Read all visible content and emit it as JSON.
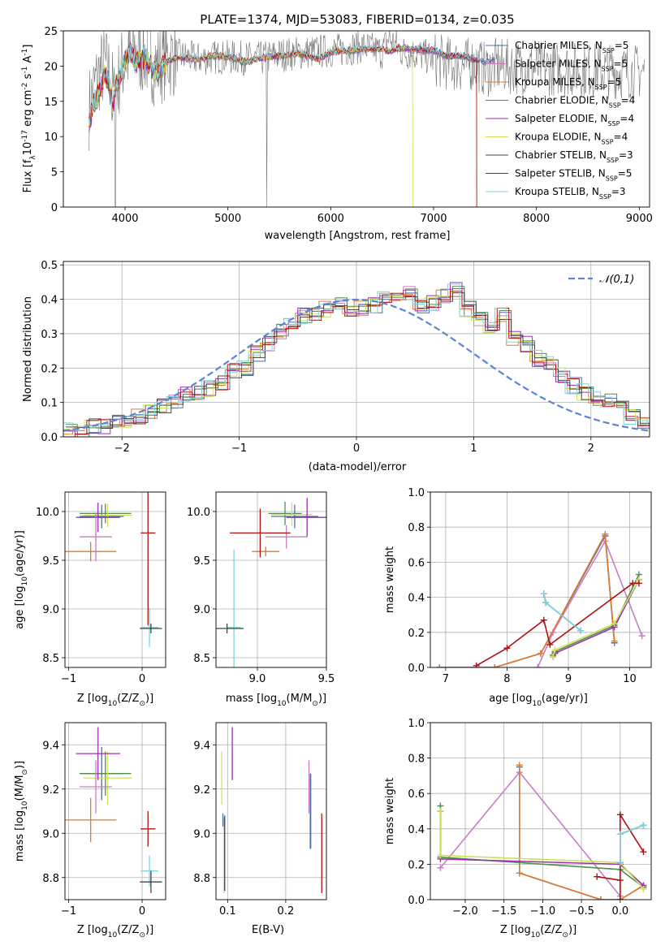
{
  "figure_title": "PLATE=1374, MJD=53083, FIBERID=0134, z=0.035",
  "series_styles": [
    {
      "name": "Chabrier MILES, N$_{SSP}$=5",
      "color": "#4a6fa5"
    },
    {
      "name": "Salpeter MILES, N$_{SSP}$=5",
      "color": "#c87dc3"
    },
    {
      "name": "Kroupa MILES, N$_{SSP}$=5",
      "color": "#e07a2a"
    },
    {
      "name": "Chabrier ELODIE, N$_{SSP}$=4",
      "color": "#4f8f4f"
    },
    {
      "name": "Salpeter ELODIE, N$_{SSP}$=4",
      "color": "#9b2fae"
    },
    {
      "name": "Kroupa ELODIE, N$_{SSP}$=4",
      "color": "#cfe05a"
    },
    {
      "name": "Chabrier STELIB, N$_{SSP}$=3",
      "color": "#444444"
    },
    {
      "name": "Salpeter STELIB, N$_{SSP}$=5",
      "color": "#b01010"
    },
    {
      "name": "Kroupa STELIB, N$_{SSP}$=3",
      "color": "#7fd3dc"
    }
  ],
  "legend_display": [
    {
      "pre": "Chabrier MILES, N",
      "sub": "SSP",
      "post": "=5"
    },
    {
      "pre": "Salpeter MILES, N",
      "sub": "SSP",
      "post": "=5"
    },
    {
      "pre": "Kroupa MILES, N",
      "sub": "SSP",
      "post": "=5"
    },
    {
      "pre": "Chabrier ELODIE, N",
      "sub": "SSP",
      "post": "=4"
    },
    {
      "pre": "Salpeter ELODIE, N",
      "sub": "SSP",
      "post": "=4"
    },
    {
      "pre": "Kroupa ELODIE, N",
      "sub": "SSP",
      "post": "=4"
    },
    {
      "pre": "Chabrier STELIB, N",
      "sub": "SSP",
      "post": "=3"
    },
    {
      "pre": "Salpeter STELIB, N",
      "sub": "SSP",
      "post": "=5"
    },
    {
      "pre": "Kroupa STELIB, N",
      "sub": "SSP",
      "post": "=3"
    }
  ],
  "chart_data": [
    {
      "id": "spectrum",
      "type": "line",
      "xlabel": "wavelength [Angstrom, rest frame]",
      "ylabel": "Flux [f$_\\lambda$10$^{-17}$ erg cm$^{-2}$ s$^{-1}$ A$^{-1}$]",
      "xlim": [
        3400,
        9100
      ],
      "ylim": [
        0,
        25
      ],
      "xticks": [
        4000,
        5000,
        6000,
        7000,
        8000,
        9000
      ],
      "yticks": [
        0,
        5,
        10,
        15,
        20,
        25
      ],
      "data_gray_x": [
        3650,
        3700,
        3750,
        3800,
        3850,
        3900,
        3950,
        4000,
        4100,
        4200,
        4300,
        4400,
        4500,
        4700,
        4900,
        5100,
        5300,
        5500,
        5800,
        6100,
        6300,
        6500,
        6563,
        6700,
        6900,
        7100,
        7300,
        7400,
        7500,
        7600
      ],
      "data_gray_y": [
        14,
        17,
        19,
        20,
        19,
        15,
        19,
        21,
        22,
        21.5,
        20,
        21,
        21.5,
        21,
        21.3,
        21.2,
        21,
        21.6,
        22,
        22.3,
        22.8,
        22,
        24,
        22,
        21.5,
        20.5,
        20,
        20.5,
        19.5,
        19.8
      ],
      "model_x": [
        3650,
        3700,
        3750,
        3800,
        3850,
        3880,
        3900,
        3950,
        4000,
        4050,
        4100,
        4200,
        4300,
        4400,
        4500,
        4700,
        4850,
        5000,
        5175,
        5300,
        5500,
        5700,
        5890,
        6000,
        6300,
        6500,
        6563,
        6700,
        6900,
        7000,
        7100,
        7300,
        7400,
        7500,
        7600
      ],
      "model_y": [
        12,
        15,
        16,
        19,
        17.5,
        13,
        17,
        18.5,
        21,
        22,
        20.5,
        21,
        19,
        20.5,
        21.3,
        21,
        21.5,
        21.3,
        20.6,
        21.1,
        21.4,
        21.8,
        21,
        22,
        22.4,
        22.5,
        22.1,
        22.6,
        22.2,
        22.3,
        21.5,
        21.4,
        20.9,
        20.7,
        21.0
      ],
      "truncations": [
        {
          "series": "Kroupa ELODIE, N$_{SSP}$=4",
          "x_end": 6800
        },
        {
          "series": "Salpeter STELIB, N$_{SSP}$=5",
          "x_end": 7420
        },
        {
          "series": "Kroupa MILES, N$_{SSP}$=5",
          "x_end": 7420
        }
      ],
      "legend_position": "upper right"
    },
    {
      "id": "residuals",
      "type": "line",
      "xlabel": "(data-model)/error",
      "ylabel": "Normed distribution",
      "xlim": [
        -2.5,
        2.5
      ],
      "ylim": [
        0,
        0.51
      ],
      "xticks": [
        -2,
        -1,
        0,
        1,
        2
      ],
      "yticks": [
        0.0,
        0.1,
        0.2,
        0.3,
        0.4,
        0.5
      ],
      "xtick_labels": [
        "−2",
        "−1",
        "0",
        "1",
        "2"
      ],
      "ytick_labels": [
        "0.0",
        "0.1",
        "0.2",
        "0.3",
        "0.4",
        "0.5"
      ],
      "grid": true,
      "bin_width": 0.1,
      "hist_bins_start": -2.5,
      "hist_base": [
        0.02,
        0.02,
        0.03,
        0.03,
        0.04,
        0.05,
        0.06,
        0.07,
        0.09,
        0.1,
        0.12,
        0.13,
        0.14,
        0.16,
        0.19,
        0.2,
        0.24,
        0.27,
        0.31,
        0.33,
        0.35,
        0.35,
        0.37,
        0.38,
        0.36,
        0.37,
        0.38,
        0.4,
        0.41,
        0.42,
        0.38,
        0.39,
        0.41,
        0.43,
        0.37,
        0.34,
        0.32,
        0.36,
        0.29,
        0.27,
        0.23,
        0.22,
        0.18,
        0.15,
        0.13,
        0.11,
        0.1,
        0.08,
        0.06,
        0.05,
        0.04
      ],
      "normal_curve": {
        "label": "$\\mathcal{N}(0,1)$",
        "mean": 0,
        "sd": 1,
        "color": "#5b84d6"
      },
      "legend_position": "upper right"
    },
    {
      "id": "age-vs-Z",
      "type": "scatter",
      "xlabel": "Z [log$_{10}$(Z/Z$_\\odot$)]",
      "ylabel": "age  [log$_{10}$(age/yr)]",
      "xlim": [
        -1.05,
        0.32
      ],
      "ylim": [
        8.4,
        10.2
      ],
      "xticks": [
        -1,
        0
      ],
      "yticks": [
        8.5,
        9.0,
        9.5,
        10.0
      ],
      "xtick_labels": [
        "−1",
        "0"
      ],
      "ytick_labels": [
        "8.5",
        "9.0",
        "9.5",
        "10.0"
      ],
      "grid": true,
      "points": [
        {
          "x": -0.55,
          "y": 9.95,
          "xerr": 0.3,
          "yerr": 0.12,
          "series": 0
        },
        {
          "x": -0.5,
          "y": 9.98,
          "xerr": 0.35,
          "yerr": 0.1,
          "series": 3
        },
        {
          "x": -0.47,
          "y": 9.96,
          "xerr": 0.33,
          "yerr": 0.12,
          "series": 5
        },
        {
          "x": -0.6,
          "y": 9.94,
          "xerr": 0.3,
          "yerr": 0.15,
          "series": 4
        },
        {
          "x": -0.7,
          "y": 9.59,
          "xerr": 0.35,
          "yerr": 0.1,
          "series": 2
        },
        {
          "x": -0.63,
          "y": 9.74,
          "xerr": 0.22,
          "yerr": 0.25,
          "series": 1
        },
        {
          "x": 0.08,
          "y": 9.78,
          "xerr": 0.1,
          "yerr": 0.95,
          "series": 7
        },
        {
          "x": 0.1,
          "y": 8.81,
          "xerr": 0.12,
          "yerr": 0.2,
          "series": 8
        },
        {
          "x": 0.12,
          "y": 8.8,
          "xerr": 0.15,
          "yerr": 0.05,
          "series": 6
        }
      ]
    },
    {
      "id": "age-vs-mass",
      "type": "scatter",
      "xlabel": "mass [log$_{10}$(M/M$_\\odot$)]",
      "ylabel": "",
      "xlim": [
        8.7,
        9.5
      ],
      "ylim": [
        8.4,
        10.2
      ],
      "xticks": [
        9.0,
        9.5
      ],
      "yticks": [
        8.5,
        9.0,
        9.5,
        10.0
      ],
      "xtick_labels": [
        "9.0",
        "9.5"
      ],
      "ytick_labels": [
        "8.5",
        "9.0",
        "9.5",
        "10.0"
      ],
      "grid": true,
      "points": [
        {
          "x": 9.27,
          "y": 9.95,
          "xerr": 0.17,
          "yerr": 0.12,
          "series": 0
        },
        {
          "x": 9.2,
          "y": 9.98,
          "xerr": 0.12,
          "yerr": 0.12,
          "series": 3
        },
        {
          "x": 9.25,
          "y": 9.97,
          "xerr": 0.15,
          "yerr": 0.12,
          "series": 5
        },
        {
          "x": 9.36,
          "y": 9.94,
          "xerr": 0.15,
          "yerr": 0.2,
          "series": 4
        },
        {
          "x": 9.06,
          "y": 9.59,
          "xerr": 0.1,
          "yerr": 0.05,
          "series": 2
        },
        {
          "x": 9.21,
          "y": 9.74,
          "xerr": 0.15,
          "yerr": 0.12,
          "series": 1
        },
        {
          "x": 9.02,
          "y": 9.78,
          "xerr": 0.22,
          "yerr": 0.25,
          "series": 7
        },
        {
          "x": 8.83,
          "y": 8.81,
          "xerr": 0.05,
          "yerr": 0.8,
          "series": 8
        },
        {
          "x": 8.78,
          "y": 8.8,
          "xerr": 0.12,
          "yerr": 0.05,
          "series": 6
        }
      ]
    },
    {
      "id": "weight-vs-age",
      "type": "line",
      "xlabel": "age  [log$_{10}$(age/yr)]",
      "ylabel": "mass weight",
      "xlim": [
        6.75,
        10.35
      ],
      "ylim": [
        0,
        1.0
      ],
      "xticks": [
        7,
        8,
        9,
        10
      ],
      "yticks": [
        0.0,
        0.2,
        0.4,
        0.6,
        0.8,
        1.0
      ],
      "xtick_labels": [
        "7",
        "8",
        "9",
        "10"
      ],
      "ytick_labels": [
        "0.0",
        "0.2",
        "0.4",
        "0.6",
        "0.8",
        "1.0"
      ],
      "grid": true,
      "series": [
        {
          "name": "Chabrier MILES, N$_{SSP}$=5",
          "x": [
            6.9,
            7.8,
            8.55,
            9.6,
            9.75
          ],
          "y": [
            0.0,
            0.0,
            0.08,
            0.75,
            0.14
          ]
        },
        {
          "name": "Salpeter MILES, N$_{SSP}$=5",
          "x": [
            8.5,
            8.75,
            9.6,
            10.2
          ],
          "y": [
            0.0,
            0.2,
            0.72,
            0.18
          ]
        },
        {
          "name": "Kroupa MILES, N$_{SSP}$=5",
          "x": [
            6.9,
            7.8,
            8.55,
            9.6,
            9.75
          ],
          "y": [
            0.0,
            0.0,
            0.08,
            0.76,
            0.15
          ]
        },
        {
          "name": "Chabrier ELODIE, N$_{SSP}$=4",
          "x": [
            8.75,
            8.78,
            9.75,
            10.15
          ],
          "y": [
            0.07,
            0.09,
            0.24,
            0.53
          ]
        },
        {
          "name": "Salpeter ELODIE, N$_{SSP}$=4",
          "x": [
            8.75,
            8.78,
            9.75,
            10.15
          ],
          "y": [
            0.06,
            0.08,
            0.23,
            0.5
          ]
        },
        {
          "name": "Kroupa ELODIE, N$_{SSP}$=4",
          "x": [
            8.75,
            8.78,
            9.75,
            10.15
          ],
          "y": [
            0.06,
            0.1,
            0.25,
            0.5
          ]
        },
        {
          "name": "Chabrier STELIB, N$_{SSP}$=3",
          "x": [
            8.6,
            8.63,
            9.2
          ],
          "y": [
            0.42,
            0.37,
            0.21
          ]
        },
        {
          "name": "Salpeter STELIB, N$_{SSP}$=5",
          "x": [
            7.5,
            8.0,
            8.6,
            8.7,
            10.05,
            10.15
          ],
          "y": [
            0.01,
            0.11,
            0.27,
            0.13,
            0.48,
            0.48
          ]
        },
        {
          "name": "Kroupa STELIB, N$_{SSP}$=3",
          "x": [
            8.6,
            8.63,
            9.2
          ],
          "y": [
            0.42,
            0.37,
            0.21
          ]
        }
      ]
    },
    {
      "id": "mass-vs-Z",
      "type": "scatter",
      "xlabel": "Z [log$_{10}$(Z/Z$_\\odot$)]",
      "ylabel": "mass [log$_{10}$(M/M$_\\odot$)]",
      "xlim": [
        -1.05,
        0.32
      ],
      "ylim": [
        8.7,
        9.5
      ],
      "xticks": [
        -1,
        0
      ],
      "yticks": [
        8.8,
        9.0,
        9.2,
        9.4
      ],
      "xtick_labels": [
        "−1",
        "0"
      ],
      "ytick_labels": [
        "8.8",
        "9.0",
        "9.2",
        "9.4"
      ],
      "grid": true,
      "points": [
        {
          "x": -0.55,
          "y": 9.27,
          "xerr": 0.3,
          "yerr": 0.12,
          "series": 0
        },
        {
          "x": -0.5,
          "y": 9.27,
          "xerr": 0.35,
          "yerr": 0.1,
          "series": 3
        },
        {
          "x": -0.47,
          "y": 9.25,
          "xerr": 0.33,
          "yerr": 0.12,
          "series": 5
        },
        {
          "x": -0.6,
          "y": 9.36,
          "xerr": 0.3,
          "yerr": 0.12,
          "series": 4
        },
        {
          "x": -0.7,
          "y": 9.06,
          "xerr": 0.35,
          "yerr": 0.1,
          "series": 2
        },
        {
          "x": -0.63,
          "y": 9.21,
          "xerr": 0.22,
          "yerr": 0.12,
          "series": 1
        },
        {
          "x": 0.08,
          "y": 9.02,
          "xerr": 0.1,
          "yerr": 0.08,
          "series": 7
        },
        {
          "x": 0.1,
          "y": 8.83,
          "xerr": 0.12,
          "yerr": 0.07,
          "series": 8
        },
        {
          "x": 0.12,
          "y": 8.78,
          "xerr": 0.15,
          "yerr": 0.05,
          "series": 6
        }
      ]
    },
    {
      "id": "mass-vs-EBV",
      "type": "scatter",
      "xlabel": "E(B-V)",
      "ylabel": "",
      "xlim": [
        0.08,
        0.27
      ],
      "ylim": [
        8.7,
        9.5
      ],
      "xticks": [
        0.1,
        0.2
      ],
      "yticks": [
        8.8,
        9.0,
        9.2,
        9.4
      ],
      "xtick_labels": [
        "0.1",
        "0.2"
      ],
      "ytick_labels": [
        "8.8",
        "9.0",
        "9.2",
        "9.4"
      ],
      "grid": true,
      "points": [
        {
          "x": 0.09,
          "y": 9.25,
          "yerr": 0.12,
          "series": 5
        },
        {
          "x": 0.092,
          "y": 9.06,
          "yerr": 0.03,
          "series": 0
        },
        {
          "x": 0.094,
          "y": 8.9,
          "yerr": 0.17,
          "series": 8
        },
        {
          "x": 0.095,
          "y": 8.91,
          "yerr": 0.17,
          "series": 6
        },
        {
          "x": 0.108,
          "y": 9.36,
          "yerr": 0.12,
          "series": 4
        },
        {
          "x": 0.24,
          "y": 9.21,
          "yerr": 0.12,
          "series": 1
        },
        {
          "x": 0.242,
          "y": 9.1,
          "yerr": 0.17,
          "series": 2
        },
        {
          "x": 0.243,
          "y": 9.1,
          "yerr": 0.17,
          "series": 0
        },
        {
          "x": 0.262,
          "y": 8.91,
          "yerr": 0.18,
          "series": 7
        }
      ]
    },
    {
      "id": "weight-vs-Z",
      "type": "line",
      "xlabel": "Z [log$_{10}$(Z/Z$_\\odot$)]",
      "ylabel": "mass weight",
      "xlim": [
        -2.45,
        0.4
      ],
      "ylim": [
        0,
        1.0
      ],
      "xticks": [
        -2.0,
        -1.5,
        -1.0,
        -0.5,
        0.0
      ],
      "yticks": [
        0.0,
        0.2,
        0.4,
        0.6,
        0.8,
        1.0
      ],
      "xtick_labels": [
        "−2.0",
        "−1.5",
        "−1.0",
        "−0.5",
        "0.0"
      ],
      "ytick_labels": [
        "0.0",
        "0.2",
        "0.4",
        "0.6",
        "0.8",
        "1.0"
      ],
      "grid": true,
      "series": [
        {
          "name": "Chabrier MILES, N$_{SSP}$=5",
          "x": [
            -1.3,
            -1.3,
            -0.25,
            0.0,
            0.3
          ],
          "y": [
            0.75,
            0.15,
            0.0,
            0.0,
            0.08
          ]
        },
        {
          "name": "Salpeter MILES, N$_{SSP}$=5",
          "x": [
            -2.32,
            -1.3,
            0.0,
            0.0
          ],
          "y": [
            0.18,
            0.72,
            0.02,
            0.2
          ]
        },
        {
          "name": "Kroupa MILES, N$_{SSP}$=5",
          "x": [
            -1.3,
            -1.3,
            -0.25,
            0.0,
            0.3
          ],
          "y": [
            0.76,
            0.15,
            0.0,
            0.0,
            0.08
          ]
        },
        {
          "name": "Chabrier ELODIE, N$_{SSP}$=4",
          "x": [
            -2.32,
            -2.32,
            0.0,
            0.3
          ],
          "y": [
            0.53,
            0.24,
            0.17,
            0.07
          ]
        },
        {
          "name": "Salpeter ELODIE, N$_{SSP}$=4",
          "x": [
            -2.32,
            -2.32,
            0.0,
            0.3
          ],
          "y": [
            0.5,
            0.23,
            0.2,
            0.08
          ]
        },
        {
          "name": "Kroupa ELODIE, N$_{SSP}$=4",
          "x": [
            -2.32,
            -2.32,
            0.0,
            0.3
          ],
          "y": [
            0.5,
            0.25,
            0.21,
            0.06
          ]
        },
        {
          "name": "Chabrier STELIB, N$_{SSP}$=3",
          "x": [
            0.3,
            0.0,
            0.0
          ],
          "y": [
            0.42,
            0.37,
            0.21
          ]
        },
        {
          "name": "Salpeter STELIB, N$_{SSP}$=5",
          "x": [
            -0.3,
            0.0,
            0.0,
            0.0,
            0.3
          ],
          "y": [
            0.13,
            0.11,
            0.0,
            0.48,
            0.27
          ]
        },
        {
          "name": "Kroupa STELIB, N$_{SSP}$=3",
          "x": [
            0.3,
            0.0,
            0.0
          ],
          "y": [
            0.42,
            0.37,
            0.21
          ]
        }
      ]
    }
  ]
}
